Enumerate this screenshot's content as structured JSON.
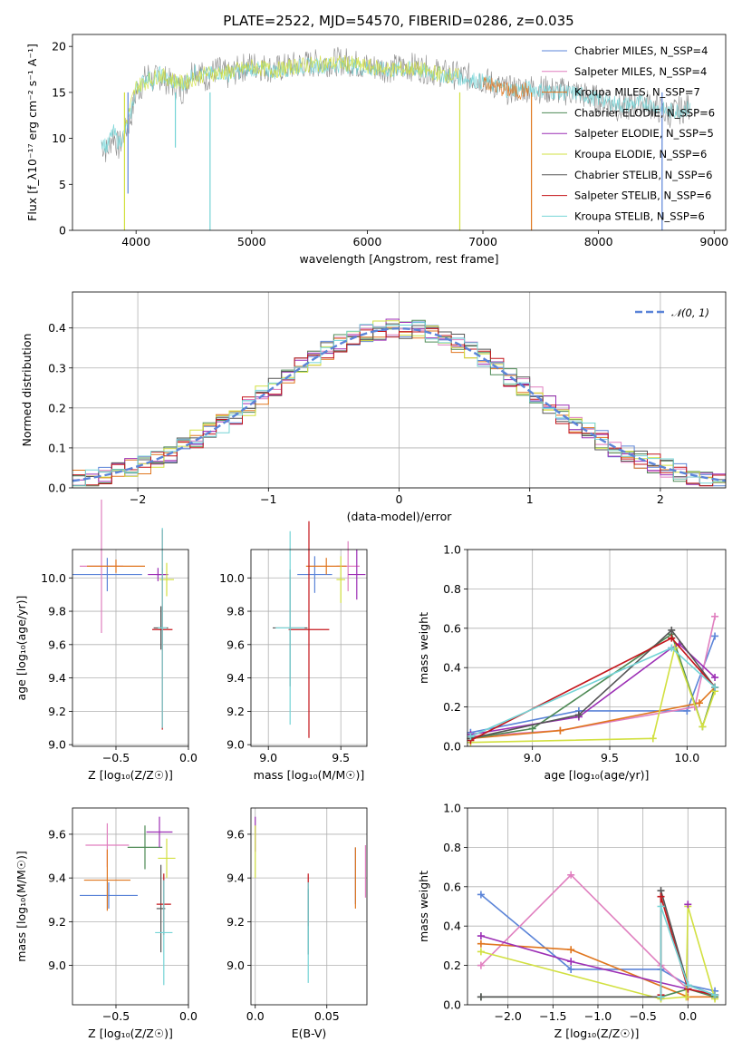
{
  "palette": {
    "chabrier_miles": "#5b84d8",
    "salpeter_miles": "#e07fbf",
    "kroupa_miles": "#e0761e",
    "chabrier_elodie": "#4e8a55",
    "salpeter_elodie": "#9c2fb5",
    "kroupa_elodie": "#d2e040",
    "chabrier_stelib": "#555555",
    "salpeter_stelib": "#c4161c",
    "kroupa_stelib": "#74d4d6",
    "data_gray": "#808080"
  },
  "chart_data": [
    {
      "id": "spectrum",
      "type": "line",
      "title": "PLATE=2522, MJD=54570, FIBERID=0286, z=0.035",
      "xlabel": "wavelength [Angstrom, rest frame]",
      "ylabel": "Flux [f_λ10⁻¹⁷ erg cm⁻² s⁻¹ A⁻¹]",
      "xlim": [
        3450,
        9100
      ],
      "ylim": [
        0,
        21.3
      ],
      "xticks": [
        4000,
        5000,
        6000,
        7000,
        8000,
        9000
      ],
      "yticks": [
        0,
        5,
        10,
        15,
        20
      ],
      "legend_position": "upper right",
      "legend": [
        {
          "label": "Chabrier MILES, N_SSP=4",
          "color_key": "chabrier_miles"
        },
        {
          "label": "Salpeter MILES, N_SSP=4",
          "color_key": "salpeter_miles"
        },
        {
          "label": "Kroupa MILES, N_SSP=7",
          "color_key": "kroupa_miles"
        },
        {
          "label": "Chabrier ELODIE, N_SSP=6",
          "color_key": "chabrier_elodie"
        },
        {
          "label": "Salpeter ELODIE, N_SSP=5",
          "color_key": "salpeter_elodie"
        },
        {
          "label": "Kroupa ELODIE, N_SSP=6",
          "color_key": "kroupa_elodie"
        },
        {
          "label": "Chabrier STELIB, N_SSP=6",
          "color_key": "chabrier_stelib"
        },
        {
          "label": "Salpeter STELIB, N_SSP=6",
          "color_key": "salpeter_stelib"
        },
        {
          "label": "Kroupa STELIB, N_SSP=6",
          "color_key": "kroupa_stelib"
        }
      ],
      "series": [
        {
          "name": "data",
          "color_key": "data_gray",
          "x": [
            3700,
            3750,
            3800,
            3850,
            3900,
            3950,
            4000,
            4050,
            4100,
            4150,
            4200,
            4300,
            4400,
            4500,
            4600,
            4700,
            4800,
            4900,
            5000,
            5200,
            5400,
            5600,
            5800,
            6000,
            6200,
            6400,
            6600,
            6800,
            7000,
            7200,
            7400,
            7600,
            7800,
            8000,
            8200,
            8400,
            8600,
            8800
          ],
          "y": [
            9.5,
            8.5,
            10.5,
            9.0,
            10.5,
            12.0,
            15.0,
            15.8,
            17.0,
            16.2,
            16.8,
            16.0,
            15.2,
            17.8,
            16.5,
            17.5,
            16.8,
            17.6,
            18.0,
            17.5,
            18.0,
            18.2,
            18.4,
            17.8,
            17.6,
            17.8,
            17.2,
            16.8,
            16.4,
            15.2,
            15.5,
            15.2,
            15.0,
            14.2,
            13.2,
            14.0,
            12.6,
            13.5
          ]
        },
        {
          "name": "Kroupa STELIB, N_SSP=6",
          "color_key": "kroupa_stelib",
          "x": [
            3700,
            3750,
            3800,
            3850,
            3900,
            3950,
            4000,
            4050,
            4100,
            4150,
            4200,
            4300,
            4400,
            4500,
            4600,
            4700,
            4800,
            4900,
            5000,
            5200,
            5400,
            5600,
            5800,
            6000,
            6200,
            6400,
            6600,
            6800,
            7000,
            7200,
            7400,
            7600,
            7800,
            8000,
            8200,
            8400,
            8600,
            8800
          ],
          "y": [
            9.8,
            9.0,
            10.8,
            9.5,
            10.5,
            12.5,
            15.5,
            16.0,
            16.8,
            16.0,
            17.0,
            16.2,
            15.8,
            17.2,
            16.8,
            17.2,
            17.0,
            17.3,
            17.6,
            17.3,
            17.8,
            17.9,
            18.0,
            17.6,
            17.4,
            17.5,
            17.0,
            16.6,
            16.2,
            15.3,
            15.4,
            15.1,
            14.9,
            14.3,
            13.6,
            13.9,
            12.9,
            13.3
          ]
        },
        {
          "name": "Kroupa ELODIE, N_SSP=6",
          "color_key": "kroupa_elodie",
          "x": [
            3900,
            4000,
            4200,
            4400,
            4600,
            4800,
            5000,
            5200,
            5400,
            5600,
            5800,
            6000,
            6200,
            6400,
            6600,
            6800
          ],
          "y": [
            11.2,
            15.6,
            16.9,
            16.0,
            17.0,
            17.2,
            17.8,
            17.4,
            17.9,
            18.1,
            18.2,
            17.8,
            17.5,
            17.6,
            17.1,
            16.7
          ]
        },
        {
          "name": "Kroupa MILES, N_SSP=7",
          "color_key": "kroupa_miles",
          "x": [
            7000,
            7100,
            7200,
            7300,
            7400
          ],
          "y": [
            16.3,
            15.6,
            15.3,
            15.0,
            15.4
          ]
        }
      ]
    },
    {
      "id": "residuals",
      "type": "histogram",
      "xlabel": "(data-model)/error",
      "ylabel": "Normed distribution",
      "xlim": [
        -2.5,
        2.5
      ],
      "ylim": [
        0,
        0.49
      ],
      "xticks": [
        -2,
        -1,
        0,
        1,
        2
      ],
      "yticks": [
        0.0,
        0.1,
        0.2,
        0.3,
        0.4
      ],
      "legend_position": "upper right",
      "legend": [
        {
          "label": "𝒩(0, 1)",
          "color_key": "chabrier_miles",
          "style": "dashed"
        }
      ],
      "bin_width": 0.1
    },
    {
      "id": "age-vs-Z",
      "type": "scatter",
      "xlabel": "Z [log₁₀(Z/Z☉)]",
      "ylabel": "age  [log₁₀(age/yr)]",
      "xlim": [
        -0.8,
        0.0
      ],
      "ylim": [
        8.99,
        10.17
      ],
      "xticks": [
        -0.5,
        0.0
      ],
      "yticks": [
        9.0,
        9.2,
        9.4,
        9.6,
        9.8,
        10.0
      ],
      "points": [
        {
          "x": -0.56,
          "y": 10.02,
          "xerr": 0.24,
          "yerr": 0.1,
          "color_key": "chabrier_miles"
        },
        {
          "x": -0.18,
          "y": 10.02,
          "xerr": 0.04,
          "yerr": 0.04,
          "color_key": "chabrier_miles"
        },
        {
          "x": -0.6,
          "y": 10.07,
          "xerr": 0.15,
          "yerr": 0.4,
          "color_key": "salpeter_miles"
        },
        {
          "x": -0.5,
          "y": 10.07,
          "xerr": 0.2,
          "yerr": 0.04,
          "color_key": "kroupa_miles"
        },
        {
          "x": -0.21,
          "y": 10.02,
          "xerr": 0.07,
          "yerr": 0.04,
          "color_key": "salpeter_elodie"
        },
        {
          "x": -0.15,
          "y": 9.99,
          "xerr": 0.05,
          "yerr": 0.1,
          "color_key": "kroupa_elodie"
        },
        {
          "x": -0.19,
          "y": 9.7,
          "xerr": 0.05,
          "yerr": 0.13,
          "color_key": "chabrier_stelib"
        },
        {
          "x": -0.18,
          "y": 9.69,
          "xerr": 0.07,
          "yerr": 0.6,
          "color_key": "salpeter_stelib"
        },
        {
          "x": -0.18,
          "y": 9.7,
          "xerr": 0.03,
          "yerr": 0.6,
          "color_key": "kroupa_stelib"
        }
      ]
    },
    {
      "id": "age-vs-mass",
      "type": "scatter",
      "xlabel": "mass [log₁₀(M/M☉)]",
      "ylabel": "",
      "xlim": [
        8.88,
        9.68
      ],
      "ylim": [
        8.99,
        10.17
      ],
      "xticks": [
        9.0,
        9.5
      ],
      "yticks": [
        9.0,
        9.2,
        9.4,
        9.6,
        9.8,
        10.0
      ],
      "points": [
        {
          "x": 9.32,
          "y": 10.02,
          "xerr": 0.12,
          "yerr": 0.11,
          "color_key": "chabrier_miles"
        },
        {
          "x": 9.55,
          "y": 10.07,
          "xerr": 0.08,
          "yerr": 0.15,
          "color_key": "salpeter_miles"
        },
        {
          "x": 9.4,
          "y": 10.07,
          "xerr": 0.14,
          "yerr": 0.05,
          "color_key": "kroupa_miles"
        },
        {
          "x": 9.61,
          "y": 10.02,
          "xerr": 0.06,
          "yerr": 0.15,
          "color_key": "salpeter_elodie"
        },
        {
          "x": 9.5,
          "y": 9.99,
          "xerr": 0.03,
          "yerr": 0.14,
          "color_key": "kroupa_elodie"
        },
        {
          "x": 9.15,
          "y": 9.7,
          "xerr": 0.12,
          "yerr": 0.35,
          "color_key": "chabrier_stelib"
        },
        {
          "x": 9.28,
          "y": 9.69,
          "xerr": 0.14,
          "yerr": 0.65,
          "color_key": "salpeter_stelib"
        },
        {
          "x": 9.15,
          "y": 9.7,
          "xerr": 0.1,
          "yerr": 0.58,
          "color_key": "kroupa_stelib"
        }
      ]
    },
    {
      "id": "mass-weight-vs-age",
      "type": "line",
      "xlabel": "age  [log₁₀(age/yr)]",
      "ylabel": "mass weight",
      "xlim": [
        8.58,
        10.25
      ],
      "ylim": [
        0.0,
        1.0
      ],
      "xticks": [
        9.0,
        9.5,
        10.0
      ],
      "yticks": [
        0.0,
        0.2,
        0.4,
        0.6,
        0.8,
        1.0
      ],
      "series": [
        {
          "color_key": "chabrier_miles",
          "x": [
            8.6,
            9.3,
            10.0,
            10.18
          ],
          "y": [
            0.07,
            0.18,
            0.18,
            0.56
          ]
        },
        {
          "color_key": "salpeter_miles",
          "x": [
            8.6,
            9.18,
            10.05,
            10.18
          ],
          "y": [
            0.05,
            0.08,
            0.2,
            0.66
          ]
        },
        {
          "color_key": "kroupa_miles",
          "x": [
            8.6,
            9.18,
            10.08,
            10.18
          ],
          "y": [
            0.04,
            0.08,
            0.22,
            0.3
          ]
        },
        {
          "color_key": "chabrier_elodie",
          "x": [
            8.6,
            9.0,
            9.9,
            10.1,
            10.18
          ],
          "y": [
            0.04,
            0.09,
            0.57,
            0.1,
            0.3
          ]
        },
        {
          "color_key": "salpeter_elodie",
          "x": [
            8.6,
            9.3,
            9.9,
            9.95,
            10.18
          ],
          "y": [
            0.06,
            0.15,
            0.5,
            0.52,
            0.35
          ]
        },
        {
          "color_key": "kroupa_elodie",
          "x": [
            8.6,
            9.78,
            9.92,
            10.1,
            10.18
          ],
          "y": [
            0.02,
            0.04,
            0.5,
            0.1,
            0.28
          ]
        },
        {
          "color_key": "chabrier_stelib",
          "x": [
            8.6,
            9.3,
            9.9,
            10.18
          ],
          "y": [
            0.04,
            0.16,
            0.59,
            0.3
          ]
        },
        {
          "color_key": "salpeter_stelib",
          "x": [
            8.6,
            9.9,
            10.18
          ],
          "y": [
            0.03,
            0.55,
            0.3
          ]
        },
        {
          "color_key": "kroupa_stelib",
          "x": [
            8.6,
            9.9,
            10.18
          ],
          "y": [
            0.05,
            0.5,
            0.3
          ]
        }
      ]
    },
    {
      "id": "mass-vs-Z",
      "type": "scatter",
      "xlabel": "Z [log₁₀(Z/Z☉)]",
      "ylabel": "mass [log₁₀(M/M☉)]",
      "xlim": [
        -0.8,
        0.0
      ],
      "ylim": [
        8.82,
        9.72
      ],
      "xticks": [
        -0.5,
        0.0
      ],
      "yticks": [
        9.0,
        9.2,
        9.4,
        9.6
      ],
      "points": [
        {
          "x": -0.55,
          "y": 9.32,
          "xerr": 0.2,
          "yerr": 0.06,
          "color_key": "chabrier_miles"
        },
        {
          "x": -0.56,
          "y": 9.55,
          "xerr": 0.15,
          "yerr": 0.1,
          "color_key": "salpeter_miles"
        },
        {
          "x": -0.56,
          "y": 9.39,
          "xerr": 0.16,
          "yerr": 0.14,
          "color_key": "kroupa_miles"
        },
        {
          "x": -0.3,
          "y": 9.54,
          "xerr": 0.12,
          "yerr": 0.1,
          "color_key": "chabrier_elodie"
        },
        {
          "x": -0.2,
          "y": 9.61,
          "xerr": 0.09,
          "yerr": 0.07,
          "color_key": "salpeter_elodie"
        },
        {
          "x": -0.15,
          "y": 9.49,
          "xerr": 0.06,
          "yerr": 0.09,
          "color_key": "kroupa_elodie"
        },
        {
          "x": -0.19,
          "y": 9.26,
          "xerr": 0.03,
          "yerr": 0.2,
          "color_key": "chabrier_stelib"
        },
        {
          "x": -0.17,
          "y": 9.28,
          "xerr": 0.05,
          "yerr": 0.14,
          "color_key": "salpeter_stelib"
        },
        {
          "x": -0.17,
          "y": 9.15,
          "xerr": 0.06,
          "yerr": 0.24,
          "color_key": "kroupa_stelib"
        }
      ]
    },
    {
      "id": "mass-vs-ebv",
      "type": "scatter",
      "xlabel": "E(B-V)",
      "ylabel": "",
      "xlim": [
        -0.003,
        0.078
      ],
      "ylim": [
        8.82,
        9.72
      ],
      "xticks": [
        0.0,
        0.05
      ],
      "yticks": [
        9.0,
        9.2,
        9.4,
        9.6
      ],
      "points": [
        {
          "x": 0.0,
          "y": 9.6,
          "yerr": 0.08,
          "color_key": "salpeter_elodie"
        },
        {
          "x": 0.0,
          "y": 9.52,
          "yerr": 0.12,
          "color_key": "kroupa_elodie"
        },
        {
          "x": 0.037,
          "y": 9.3,
          "yerr": 0.12,
          "color_key": "salpeter_stelib"
        },
        {
          "x": 0.037,
          "y": 9.2,
          "yerr": 0.15,
          "color_key": "chabrier_stelib"
        },
        {
          "x": 0.037,
          "y": 9.15,
          "yerr": 0.23,
          "color_key": "kroupa_stelib"
        },
        {
          "x": 0.07,
          "y": 9.41,
          "yerr": 0.13,
          "color_key": "chabrier_miles"
        },
        {
          "x": 0.07,
          "y": 9.4,
          "yerr": 0.14,
          "color_key": "kroupa_miles"
        },
        {
          "x": 0.077,
          "y": 9.43,
          "yerr": 0.12,
          "color_key": "salpeter_miles"
        }
      ]
    },
    {
      "id": "mass-weight-vs-Z",
      "type": "line",
      "xlabel": "Z [log₁₀(Z/Z☉)]",
      "ylabel": "mass weight",
      "xlim": [
        -2.45,
        0.42
      ],
      "ylim": [
        0.0,
        1.0
      ],
      "xticks": [
        -2.0,
        -1.5,
        -1.0,
        -0.5,
        0.0
      ],
      "yticks": [
        0.0,
        0.2,
        0.4,
        0.6,
        0.8,
        1.0
      ],
      "series": [
        {
          "color_key": "chabrier_miles",
          "x": [
            -2.3,
            -1.3,
            -0.3,
            0.0,
            0.3
          ],
          "y": [
            0.56,
            0.18,
            0.18,
            0.1,
            0.07
          ]
        },
        {
          "color_key": "salpeter_miles",
          "x": [
            -2.3,
            -1.3,
            -0.3,
            0.0,
            0.3
          ],
          "y": [
            0.2,
            0.66,
            0.2,
            0.08,
            0.05
          ]
        },
        {
          "color_key": "kroupa_miles",
          "x": [
            -2.3,
            -1.3,
            0.0,
            0.3
          ],
          "y": [
            0.31,
            0.28,
            0.04,
            0.04
          ]
        },
        {
          "color_key": "chabrier_elodie",
          "x": [
            -2.3,
            -0.3,
            0.0,
            0.3
          ],
          "y": [
            0.04,
            0.04,
            0.08,
            0.04
          ]
        },
        {
          "color_key": "salpeter_elodie",
          "x": [
            -2.3,
            -1.3,
            0.0,
            0.3
          ],
          "y": [
            0.35,
            0.22,
            0.08,
            0.05
          ]
        },
        {
          "color_key": "kroupa_elodie",
          "x": [
            -2.3,
            -0.3,
            -0.02,
            0.0,
            0.3
          ],
          "y": [
            0.27,
            0.03,
            0.04,
            0.5,
            0.03
          ]
        },
        {
          "color_key": "chabrier_stelib",
          "x": [
            -2.3,
            -0.3,
            -0.3,
            0.0,
            0.3
          ],
          "y": [
            0.04,
            0.04,
            0.58,
            0.1,
            0.05
          ]
        },
        {
          "color_key": "salpeter_stelib",
          "x": [
            -0.3,
            -0.3,
            0.0,
            0.3
          ],
          "y": [
            0.05,
            0.55,
            0.08,
            0.05
          ]
        },
        {
          "color_key": "kroupa_stelib",
          "x": [
            -0.3,
            -0.3,
            0.0,
            0.3
          ],
          "y": [
            0.04,
            0.5,
            0.1,
            0.05
          ]
        },
        {
          "color_key": "salpeter_elodie",
          "x": [
            0.0
          ],
          "y": [
            0.51
          ],
          "markers_only": true
        }
      ]
    }
  ]
}
